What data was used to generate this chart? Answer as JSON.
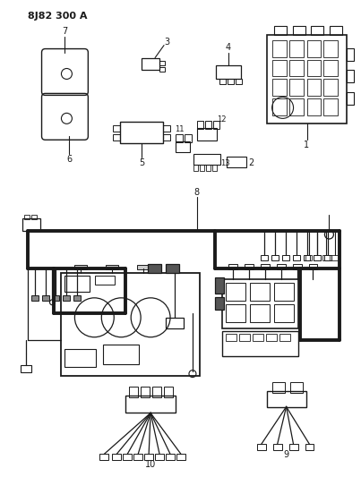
{
  "title": "8J82 300 A",
  "bg_color": "#ffffff",
  "line_color": "#1a1a1a",
  "fig_width": 4.03,
  "fig_height": 5.33,
  "dpi": 100
}
